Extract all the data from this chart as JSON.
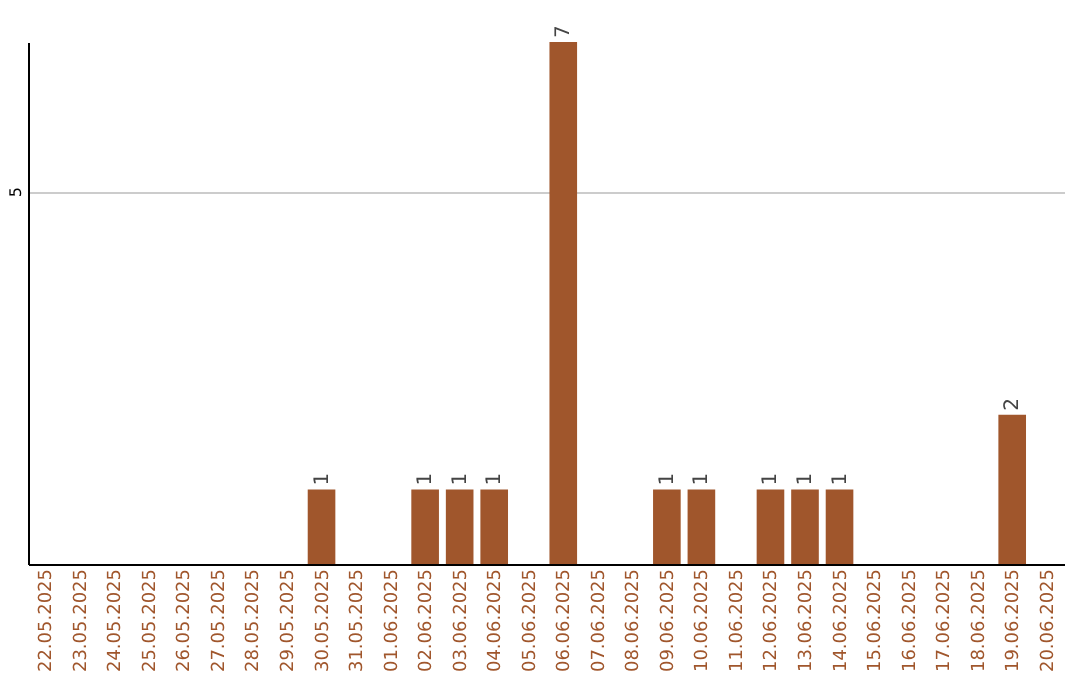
{
  "chart_data": {
    "type": "bar",
    "categories": [
      "22.05.2025",
      "23.05.2025",
      "24.05.2025",
      "25.05.2025",
      "26.05.2025",
      "27.05.2025",
      "28.05.2025",
      "29.05.2025",
      "30.05.2025",
      "31.05.2025",
      "01.06.2025",
      "02.06.2025",
      "03.06.2025",
      "04.06.2025",
      "05.06.2025",
      "06.06.2025",
      "07.06.2025",
      "08.06.2025",
      "09.06.2025",
      "10.06.2025",
      "11.06.2025",
      "12.06.2025",
      "13.06.2025",
      "14.06.2025",
      "15.06.2025",
      "16.06.2025",
      "17.06.2025",
      "18.06.2025",
      "19.06.2025",
      "20.06.2025"
    ],
    "values": [
      0,
      0,
      0,
      0,
      0,
      0,
      0,
      0,
      1,
      0,
      0,
      1,
      1,
      1,
      0,
      7,
      0,
      0,
      1,
      1,
      0,
      1,
      1,
      1,
      0,
      0,
      0,
      0,
      2,
      0
    ],
    "value_labels": [
      null,
      null,
      null,
      null,
      null,
      null,
      null,
      null,
      "1",
      null,
      null,
      "1",
      "1",
      "1",
      null,
      "7",
      null,
      null,
      "1",
      "1",
      null,
      "1",
      "1",
      "1",
      null,
      null,
      null,
      null,
      "2",
      null
    ],
    "color": "#a0562c",
    "ylim": [
      0,
      7
    ],
    "yticks": [
      5
    ],
    "grid": "y"
  }
}
